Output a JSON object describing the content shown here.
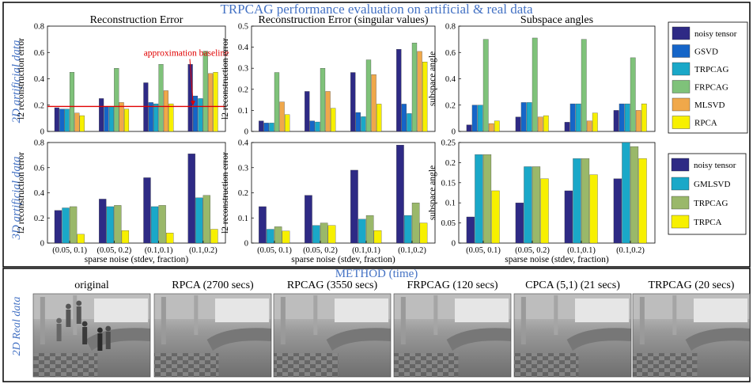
{
  "title": "TRPCAG performance evaluation on artificial & real data",
  "row_labels": {
    "row1": "2D artificial data",
    "row2": "3D artificial data",
    "row3": "2D Real data"
  },
  "method_caption": "METHOD (time)",
  "colors": {
    "title": "#4472c4",
    "noisy_tensor": "#2e2a85",
    "gsvd": "#1565c8",
    "trpcag_cyan": "#1aa8c8",
    "frpcag": "#7fc27a",
    "mlsvd": "#f0a84a",
    "rpca": "#f7f000",
    "trpcag_green": "#9ab86a",
    "baseline": "#e00000"
  },
  "legend1": [
    "noisy tensor",
    "GSVD",
    "TRPCAG",
    "FRPCAG",
    "MLSVD",
    "RPCA"
  ],
  "legend2": [
    "noisy tensor",
    "GMLSVD",
    "TRPCAG",
    "TRPCA"
  ],
  "chart_data": [
    {
      "type": "bar",
      "title": "Reconstruction Error",
      "xlabel": "",
      "ylabel": "l2 reconstruction error",
      "ylim": [
        0,
        0.8
      ],
      "yticks": [
        "0",
        "0.2",
        "0.4",
        "0.6",
        "0.8"
      ],
      "categories": [
        "(0.05, 0.1)",
        "(0.05, 0.2)",
        "(0.1,0.1)",
        "(0.1,0.2)"
      ],
      "series": [
        {
          "name": "noisy tensor",
          "values": [
            0.18,
            0.25,
            0.37,
            0.51
          ]
        },
        {
          "name": "GSVD",
          "values": [
            0.17,
            0.19,
            0.22,
            0.27
          ]
        },
        {
          "name": "TRPCAG",
          "values": [
            0.17,
            0.19,
            0.21,
            0.25
          ]
        },
        {
          "name": "FRPCAG",
          "values": [
            0.45,
            0.48,
            0.51,
            0.61
          ]
        },
        {
          "name": "MLSVD",
          "values": [
            0.14,
            0.22,
            0.31,
            0.44
          ]
        },
        {
          "name": "RPCA",
          "values": [
            0.12,
            0.17,
            0.21,
            0.45
          ]
        }
      ],
      "baseline": 0.19,
      "annotation": "approximation baseline"
    },
    {
      "type": "bar",
      "title": "Reconstruction Error (singular values)",
      "ylabel": "l2 reconstruction error",
      "ylim": [
        0,
        0.5
      ],
      "yticks": [
        "0",
        "0.1",
        "0.2",
        "0.3",
        "0.4",
        "0.5"
      ],
      "categories": [
        "(0.05, 0.1)",
        "(0.05, 0.2)",
        "(0.1,0.1)",
        "(0.1,0.2)"
      ],
      "series": [
        {
          "name": "noisy tensor",
          "values": [
            0.05,
            0.19,
            0.28,
            0.39
          ]
        },
        {
          "name": "GSVD",
          "values": [
            0.04,
            0.05,
            0.09,
            0.13
          ]
        },
        {
          "name": "TRPCAG",
          "values": [
            0.04,
            0.045,
            0.07,
            0.085
          ]
        },
        {
          "name": "FRPCAG",
          "values": [
            0.28,
            0.3,
            0.34,
            0.42
          ]
        },
        {
          "name": "MLSVD",
          "values": [
            0.14,
            0.19,
            0.27,
            0.38
          ]
        },
        {
          "name": "RPCA",
          "values": [
            0.08,
            0.11,
            0.13,
            0.33
          ]
        }
      ]
    },
    {
      "type": "bar",
      "title": "Subspace angles",
      "ylabel": "subspace angle",
      "ylim": [
        0,
        0.8
      ],
      "yticks": [
        "0",
        "0.2",
        "0.4",
        "0.6",
        "0.8"
      ],
      "categories": [
        "(0.05, 0.1)",
        "(0.05, 0.2)",
        "(0.1,0.1)",
        "(0.1,0.2)"
      ],
      "series": [
        {
          "name": "noisy tensor",
          "values": [
            0.05,
            0.11,
            0.07,
            0.16
          ]
        },
        {
          "name": "GSVD",
          "values": [
            0.2,
            0.22,
            0.21,
            0.21
          ]
        },
        {
          "name": "TRPCAG",
          "values": [
            0.2,
            0.22,
            0.21,
            0.21
          ]
        },
        {
          "name": "FRPCAG",
          "values": [
            0.7,
            0.71,
            0.7,
            0.56
          ]
        },
        {
          "name": "MLSVD",
          "values": [
            0.06,
            0.11,
            0.08,
            0.16
          ]
        },
        {
          "name": "RPCA",
          "values": [
            0.08,
            0.12,
            0.14,
            0.21
          ]
        }
      ]
    },
    {
      "type": "bar",
      "title": "",
      "xlabel": "sparse noise (stdev, fraction)",
      "ylabel": "l2 reconstruction error",
      "ylim": [
        0,
        0.8
      ],
      "yticks": [
        "0",
        "0.2",
        "0.4",
        "0.6",
        "0.8"
      ],
      "categories": [
        "(0.05, 0.1)",
        "(0.05, 0.2)",
        "(0.1,0.1)",
        "(0.1,0.2)"
      ],
      "series": [
        {
          "name": "noisy tensor",
          "values": [
            0.26,
            0.35,
            0.52,
            0.71
          ]
        },
        {
          "name": "GMLSVD",
          "values": [
            0.28,
            0.29,
            0.29,
            0.36
          ]
        },
        {
          "name": "TRPCAG",
          "values": [
            0.29,
            0.3,
            0.3,
            0.38
          ]
        },
        {
          "name": "TRPCA",
          "values": [
            0.07,
            0.1,
            0.08,
            0.11
          ]
        }
      ]
    },
    {
      "type": "bar",
      "title": "",
      "xlabel": "sparse noise (stdev, fraction)",
      "ylabel": "l2 reconstruction error",
      "ylim": [
        0,
        0.4
      ],
      "yticks": [
        "0",
        "0.1",
        "0.2",
        "0.3",
        "0.4"
      ],
      "categories": [
        "(0.05, 0.1)",
        "(0.05, 0.2)",
        "(0.1,0.1)",
        "(0.1,0.2)"
      ],
      "series": [
        {
          "name": "noisy tensor",
          "values": [
            0.145,
            0.19,
            0.29,
            0.39
          ]
        },
        {
          "name": "GMLSVD",
          "values": [
            0.055,
            0.07,
            0.095,
            0.11
          ]
        },
        {
          "name": "TRPCAG",
          "values": [
            0.065,
            0.08,
            0.11,
            0.16
          ]
        },
        {
          "name": "TRPCA",
          "values": [
            0.048,
            0.07,
            0.05,
            0.08
          ]
        }
      ]
    },
    {
      "type": "bar",
      "title": "",
      "xlabel": "sparse noise (stdev, fraction)",
      "ylabel": "subspace angle",
      "ylim": [
        0,
        0.25
      ],
      "yticks": [
        "0",
        "0.05",
        "0.1",
        "0.15",
        "0.2",
        "0.25"
      ],
      "categories": [
        "(0.05, 0.1)",
        "(0.05, 0.2)",
        "(0.1,0.1)",
        "(0.1,0.2)"
      ],
      "series": [
        {
          "name": "noisy tensor",
          "values": [
            0.065,
            0.1,
            0.13,
            0.16
          ]
        },
        {
          "name": "GMLSVD",
          "values": [
            0.22,
            0.19,
            0.21,
            0.25
          ]
        },
        {
          "name": "TRPCAG",
          "values": [
            0.22,
            0.19,
            0.21,
            0.24
          ]
        },
        {
          "name": "TRPCA",
          "values": [
            0.13,
            0.16,
            0.17,
            0.21
          ]
        }
      ]
    }
  ],
  "frames": [
    {
      "caption": "original"
    },
    {
      "caption": "RPCA (2700 secs)"
    },
    {
      "caption": "RPCAG (3550 secs)"
    },
    {
      "caption": "FRPCAG (120 secs)"
    },
    {
      "caption": "CPCA (5,1) (21 secs)"
    },
    {
      "caption": "TRPCAG (20 secs)"
    }
  ]
}
